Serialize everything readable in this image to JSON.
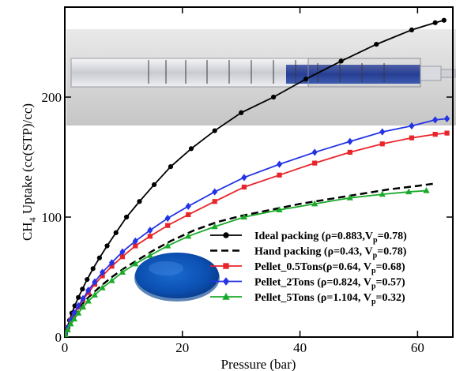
{
  "chart_data": {
    "type": "line",
    "xlabel": "Pressure (bar)",
    "ylabel_main": "CH",
    "ylabel_sub": "4",
    "ylabel_rest": " Uptake (cc(STP)/cc)",
    "xlim": [
      0,
      66
    ],
    "ylim": [
      0,
      275
    ],
    "xticks": [
      0,
      20,
      40,
      60
    ],
    "yticks": [
      0,
      100,
      200
    ],
    "xtick_labels": [
      "0",
      "20",
      "40",
      "60"
    ],
    "ytick_labels": [
      "0",
      "100",
      "200"
    ],
    "legend_position": "bottom-right",
    "series": [
      {
        "name": "Ideal packing (ρ=0.883,V",
        "name_sub": "p",
        "name_end": "=0.78)",
        "color": "#000000",
        "marker": "circle",
        "style": "solid",
        "x": [
          0.1,
          0.4,
          0.8,
          1.2,
          1.7,
          2.3,
          3.0,
          3.8,
          4.8,
          5.9,
          7.2,
          8.7,
          10.5,
          12.7,
          15.2,
          18.0,
          21.5,
          25.5,
          30.0,
          35.5,
          41.0,
          47.0,
          53.0,
          59.0,
          63.0,
          64.5
        ],
        "y": [
          3,
          8,
          14,
          20,
          26,
          33,
          40,
          48,
          57,
          66,
          76,
          87,
          100,
          113,
          127,
          142,
          157,
          172,
          187,
          200,
          215,
          230,
          244,
          256,
          262,
          264
        ]
      },
      {
        "name": "Hand packing  (ρ=0.43, V",
        "name_sub": "p",
        "name_end": "=0.78)",
        "color": "#000000",
        "marker": "none",
        "style": "dashed",
        "x": [
          0,
          1,
          2,
          4,
          6,
          8,
          10,
          12,
          15,
          18,
          22,
          26,
          30,
          35,
          40,
          45,
          50,
          55,
          60,
          63
        ],
        "y": [
          0,
          14,
          22,
          33,
          42,
          50,
          57,
          63,
          72,
          80,
          89,
          96,
          101,
          106,
          111,
          115,
          119,
          123,
          126,
          128
        ]
      },
      {
        "name": "Pellet_0.5Tons(ρ=0.64, V",
        "name_sub": "p",
        "name_end": "=0.68)",
        "color": "#e8252b",
        "marker": "square",
        "style": "solid",
        "x": [
          0.1,
          0.5,
          1.0,
          1.6,
          2.3,
          3.1,
          4.0,
          5.1,
          6.4,
          8.0,
          9.8,
          12.0,
          14.5,
          17.5,
          21.0,
          25.5,
          30.5,
          36.5,
          42.5,
          48.5,
          54.0,
          59.0,
          63.0,
          65.0
        ],
        "y": [
          3,
          8,
          14,
          19,
          25,
          31,
          37,
          44,
          51,
          59,
          67,
          76,
          84,
          93,
          102,
          113,
          125,
          135,
          145,
          154,
          161,
          166,
          169,
          170
        ]
      },
      {
        "name": "Pellet_2Tons (ρ=0.824, V",
        "name_sub": "p",
        "name_end": "=0.57)",
        "color": "#2433e6",
        "marker": "diamond",
        "style": "solid",
        "x": [
          0.1,
          0.5,
          1.0,
          1.6,
          2.3,
          3.1,
          4.0,
          5.1,
          6.4,
          8.0,
          9.8,
          12.0,
          14.5,
          17.5,
          21.0,
          25.5,
          30.5,
          36.5,
          42.5,
          48.5,
          54.0,
          59.0,
          63.0,
          65.0
        ],
        "y": [
          3,
          8,
          14,
          20,
          26,
          32,
          39,
          46,
          54,
          62,
          71,
          80,
          89,
          99,
          109,
          121,
          133,
          144,
          154,
          163,
          171,
          176,
          181,
          182
        ]
      },
      {
        "name": "Pellet_5Tons (ρ=1.104, V",
        "name_sub": "p",
        "name_end": "=0.32)",
        "color": "#1aaa2a",
        "marker": "triangle",
        "style": "solid",
        "x": [
          0.1,
          0.5,
          1.0,
          1.6,
          2.3,
          3.1,
          4.0,
          5.1,
          6.4,
          8.0,
          9.8,
          12.0,
          14.5,
          17.5,
          21.0,
          25.5,
          30.5,
          36.5,
          42.5,
          48.5,
          54.0,
          58.5,
          61.5
        ],
        "y": [
          2,
          6,
          11,
          15,
          20,
          25,
          30,
          35,
          41,
          47,
          54,
          61,
          68,
          76,
          84,
          92,
          100,
          106,
          111,
          116,
          119,
          121,
          122
        ]
      }
    ]
  }
}
